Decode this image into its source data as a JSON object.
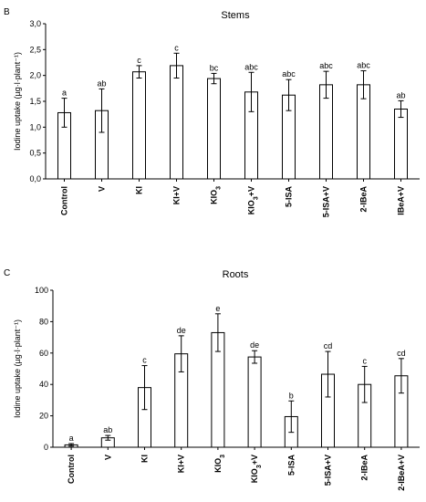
{
  "chart_data": [
    {
      "panel": "B",
      "type": "bar",
      "title": "Stems",
      "ylabel": "Iodine uptake (µg·l·plant⁻¹)",
      "ylim": [
        0,
        3.0
      ],
      "yticks": [
        "0,0",
        "0,5",
        "1,0",
        "1,5",
        "2,0",
        "2,5",
        "3,0"
      ],
      "yticks_values": [
        0,
        0.5,
        1.0,
        1.5,
        2.0,
        2.5,
        3.0
      ],
      "categories": [
        "Control",
        "V",
        "KI",
        "KI+V",
        "KIO3",
        "KIO3+V",
        "5-ISA",
        "5-ISA+V",
        "2-IBeA",
        "IBeA+V"
      ],
      "category_labels": [
        {
          "main": "Control"
        },
        {
          "main": "V"
        },
        {
          "main": "KI"
        },
        {
          "main": "KI+V"
        },
        {
          "main": "KIO",
          "sub": "3"
        },
        {
          "main": "KIO",
          "sub": "3",
          "suffix": "+V"
        },
        {
          "main": "5-ISA"
        },
        {
          "main": "5-ISA+V"
        },
        {
          "main": "2-IBeA"
        },
        {
          "main": "IBeA+V"
        }
      ],
      "values": [
        1.28,
        1.32,
        2.07,
        2.19,
        1.94,
        1.68,
        1.62,
        1.82,
        1.82,
        1.35
      ],
      "errors": [
        0.28,
        0.42,
        0.12,
        0.24,
        0.1,
        0.38,
        0.3,
        0.26,
        0.27,
        0.16
      ],
      "significance": [
        "a",
        "ab",
        "c",
        "c",
        "bc",
        "abc",
        "abc",
        "abc",
        "abc",
        "ab"
      ],
      "grid": false
    },
    {
      "panel": "C",
      "type": "bar",
      "title": "Roots",
      "ylabel": "Iodine uptake (µg·l·plant⁻¹)",
      "ylim": [
        0,
        100
      ],
      "yticks": [
        "0",
        "20",
        "40",
        "60",
        "80",
        "100"
      ],
      "yticks_values": [
        0,
        20,
        40,
        60,
        80,
        100
      ],
      "categories": [
        "Control",
        "V",
        "KI",
        "KI+V",
        "KIO3",
        "KIO3+V",
        "5-ISA",
        "5-ISA+V",
        "2-IBeA",
        "2-IBeA+V"
      ],
      "category_labels": [
        {
          "main": "Control"
        },
        {
          "main": "V"
        },
        {
          "main": "KI"
        },
        {
          "main": "KI+V"
        },
        {
          "main": "KIO",
          "sub": "3"
        },
        {
          "main": "KIO",
          "sub": "3",
          "suffix": "+V"
        },
        {
          "main": "5-ISA"
        },
        {
          "main": "5-ISA+V"
        },
        {
          "main": "2-IBeA"
        },
        {
          "main": "2-IBeA+V"
        }
      ],
      "values": [
        1.5,
        6,
        38,
        59.5,
        73,
        57.5,
        19.5,
        46.5,
        40,
        45.5
      ],
      "errors": [
        0.8,
        1.5,
        14,
        11.5,
        12,
        4,
        10,
        14.5,
        11.5,
        11
      ],
      "significance": [
        "a",
        "ab",
        "c",
        "de",
        "e",
        "de",
        "b",
        "cd",
        "c",
        "cd"
      ],
      "grid": false
    }
  ]
}
